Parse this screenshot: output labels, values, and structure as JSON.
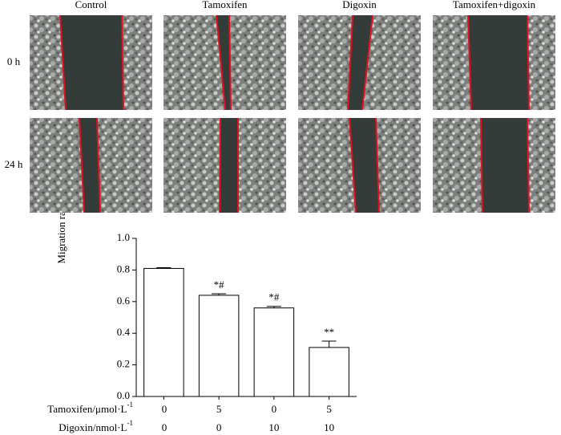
{
  "images": {
    "columns": [
      "Control",
      "Tamoxifen",
      "Digoxin",
      "Tamoxifen+digoxin"
    ],
    "rows": [
      "0 h",
      "24 h"
    ]
  },
  "chart_data": {
    "type": "bar",
    "y_label": "Migration rate/%",
    "categories": [
      null,
      null,
      null,
      null
    ],
    "values": [
      0.81,
      0.64,
      0.56,
      0.31
    ],
    "errors": [
      0.005,
      0.01,
      0.01,
      0.04
    ],
    "annotations": [
      null,
      "*#",
      "*#",
      "**"
    ],
    "color": "#ffffff",
    "ylim": [
      0,
      1.0
    ],
    "yticks": [
      {
        "value": 0,
        "label": "0.0"
      },
      0.2,
      0.4,
      0.6,
      0.8,
      {
        "value": 1.0,
        "label": "1.0"
      }
    ],
    "x_rows": [
      {
        "label": "Tamoxifen/μmol·L",
        "label_sup": "-1",
        "values": [
          "0",
          "5",
          "0",
          "5"
        ]
      },
      {
        "label": "Digoxin/nmol·L",
        "label_sup": "-1",
        "values": [
          "0",
          "0",
          "10",
          "10"
        ]
      }
    ]
  }
}
